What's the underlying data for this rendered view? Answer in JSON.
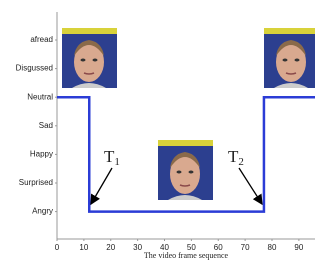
{
  "chart_data": {
    "type": "line",
    "x_label": "The video frame sequence",
    "categories": [
      "Angry",
      "Surprised",
      "Happy",
      "Sad",
      "Neutral",
      "Disgussed",
      "afread"
    ],
    "x": [
      0,
      12,
      12,
      77,
      77,
      96
    ],
    "values": [
      "Neutral",
      "Neutral",
      "Angry",
      "Angry",
      "Neutral",
      "Neutral"
    ],
    "color": "#2b3cd6",
    "xlim": [
      0,
      96
    ],
    "xticks": [
      0,
      10,
      20,
      30,
      40,
      50,
      60,
      70,
      80,
      90
    ],
    "annotations": [
      {
        "text": "T",
        "sub": "1"
      },
      {
        "text": "T",
        "sub": "2"
      }
    ]
  }
}
